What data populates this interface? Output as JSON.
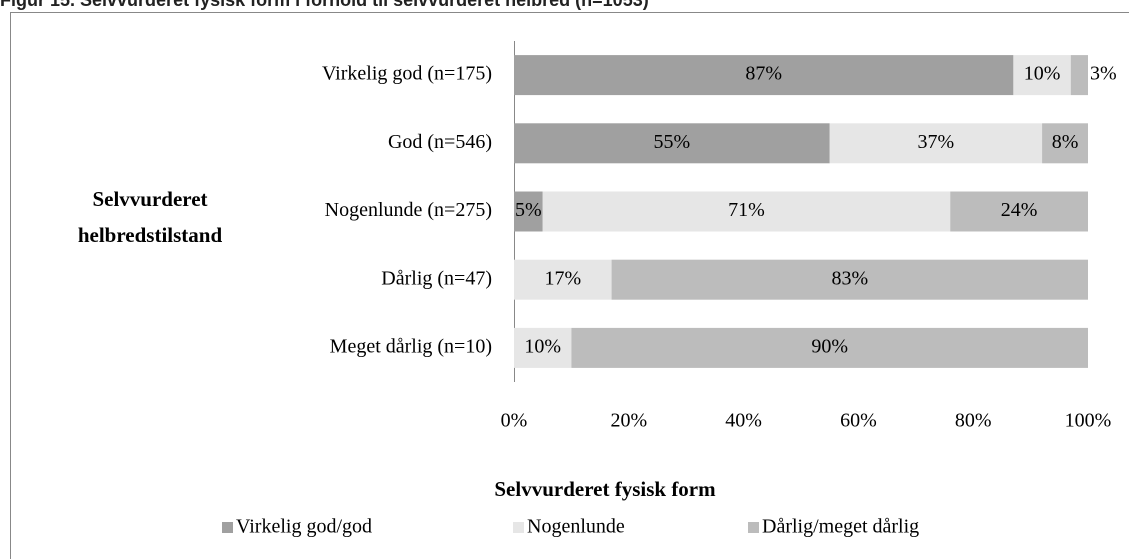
{
  "chart_data": {
    "type": "stacked-barh",
    "title": "Figur 15. Selvvurderet fysisk form i forhold til selvvurderet helbred (n=1053)",
    "y_label": "Selvvurderet helbredstilstand",
    "x_label": "Selvvurderet fysisk form",
    "categories": [
      "Virkelig god (n=175)",
      "God (n=546)",
      "Nogenlunde (n=275)",
      "Dårlig (n=47)",
      "Meget dårlig (n=10)"
    ],
    "series": [
      {
        "name": "Virkelig god/god",
        "color": "#a0a0a0",
        "values": [
          87,
          55,
          5,
          null,
          null
        ],
        "value_labels": [
          "87%",
          "55%",
          "5%",
          null,
          null
        ]
      },
      {
        "name": "Nogenlunde",
        "color": "#e6e6e6",
        "values": [
          10,
          37,
          71,
          17,
          10
        ],
        "value_labels": [
          "10%",
          "37%",
          "71%",
          "17%",
          "10%"
        ]
      },
      {
        "name": "Dårlig/meget dårlig",
        "color": "#bcbcbc",
        "values": [
          3,
          8,
          24,
          83,
          90
        ],
        "value_labels": [
          "3%",
          "8%",
          "24%",
          "83%",
          "90%"
        ]
      }
    ],
    "xlim": [
      0,
      100
    ],
    "xticks": [
      {
        "value": 0,
        "label": "0%"
      },
      {
        "value": 20,
        "label": "20%"
      },
      {
        "value": 40,
        "label": "40%"
      },
      {
        "value": 60,
        "label": "60%"
      },
      {
        "value": 80,
        "label": "80%"
      },
      {
        "value": 100,
        "label": "100%"
      }
    ],
    "legend": "bottom"
  }
}
